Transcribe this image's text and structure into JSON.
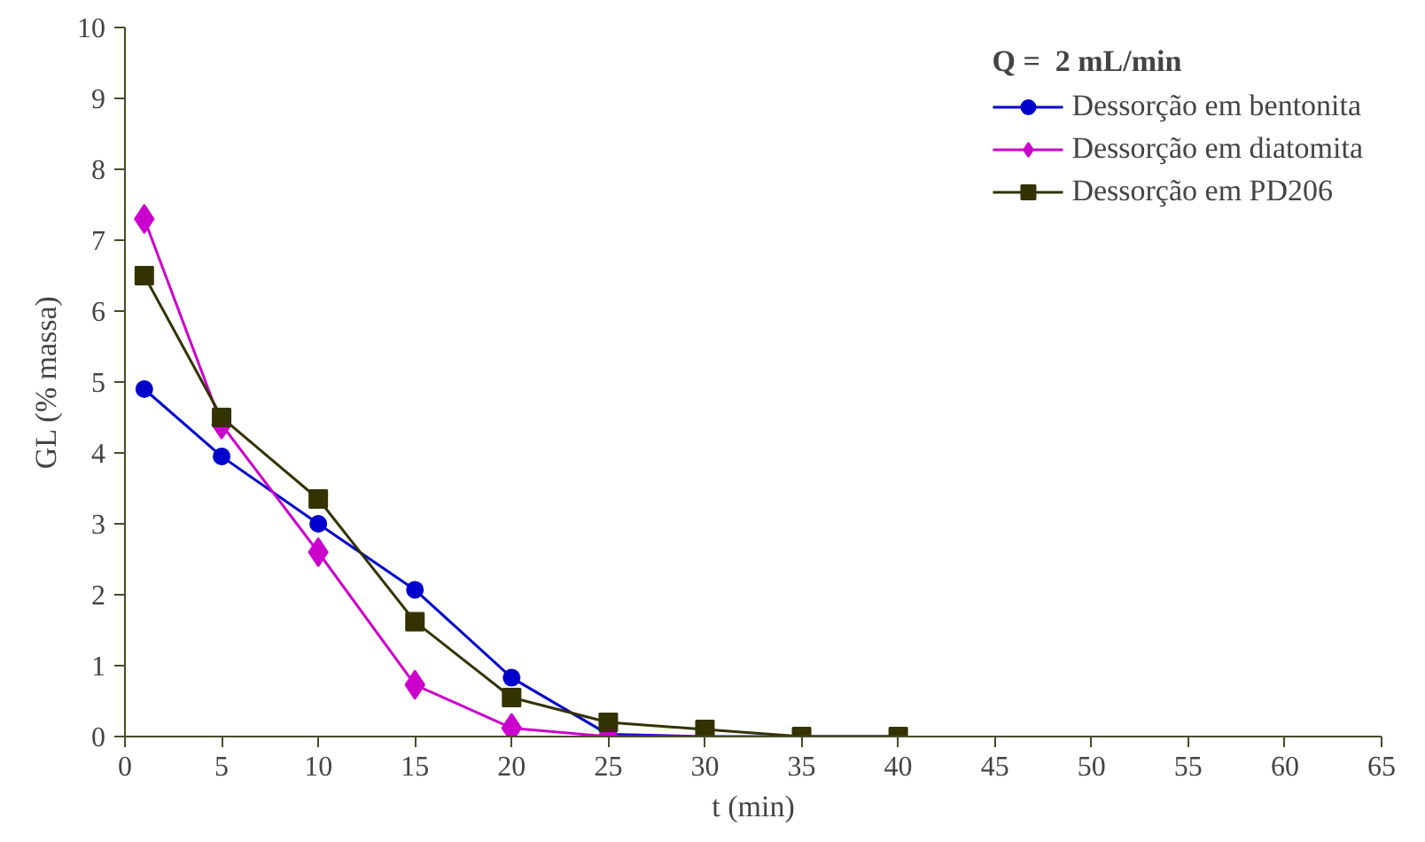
{
  "chart_data": {
    "type": "line",
    "xlabel": "t (min)",
    "ylabel": "GL (% massa)",
    "legend_title": "Q =  2 mL/min",
    "x": [
      1,
      5,
      10,
      15,
      20,
      25,
      30,
      35,
      40
    ],
    "series": [
      {
        "name": "Dessorção em bentonita",
        "color": "#0000cc",
        "marker": "circle",
        "values": [
          4.9,
          3.95,
          3.0,
          2.07,
          0.83,
          0.03,
          0.0,
          0.0,
          0.0
        ]
      },
      {
        "name": "Dessorção em diatomita",
        "color": "#cc00cc",
        "marker": "diamond",
        "values": [
          7.3,
          4.4,
          2.6,
          0.73,
          0.12,
          0.0,
          0.0,
          null,
          null
        ]
      },
      {
        "name": "Dessorção em PD206",
        "color": "#333300",
        "marker": "square",
        "values": [
          6.5,
          4.5,
          3.35,
          1.62,
          0.55,
          0.2,
          0.1,
          0.0,
          0.0
        ]
      }
    ],
    "xlim": [
      0,
      65
    ],
    "xticks": [
      0,
      5,
      10,
      15,
      20,
      25,
      30,
      35,
      40,
      45,
      50,
      55,
      60,
      65
    ],
    "ylim": [
      0,
      10
    ],
    "yticks": [
      0,
      1,
      2,
      3,
      4,
      5,
      6,
      7,
      8,
      9,
      10
    ],
    "grid": false,
    "legend": "top right",
    "line_style": "solid"
  }
}
